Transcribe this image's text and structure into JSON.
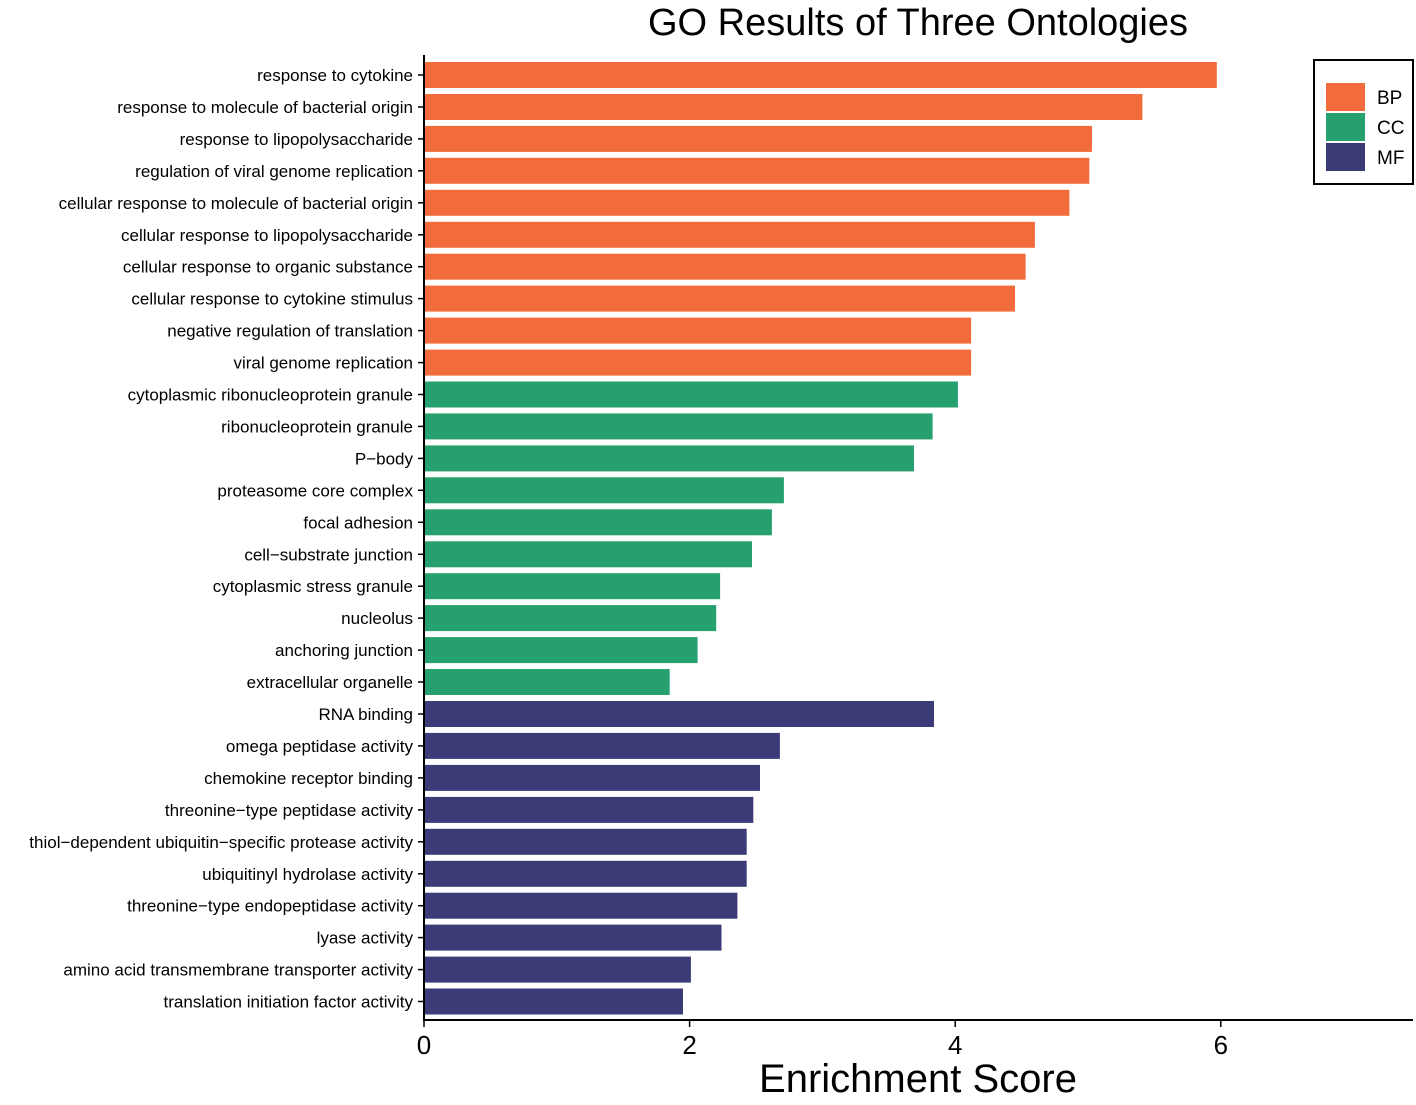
{
  "chart_data": {
    "type": "bar",
    "orientation": "horizontal",
    "title": "GO Results of Three Ontologies",
    "xlabel": "Enrichment Score",
    "ylabel": "",
    "xlim": [
      0,
      7.45
    ],
    "xticks": [
      0,
      2,
      4,
      6
    ],
    "grid": false,
    "legend_position": "top-right",
    "groups": [
      {
        "name": "BP",
        "color": "#F26B3A"
      },
      {
        "name": "CC",
        "color": "#27A06F"
      },
      {
        "name": "MF",
        "color": "#3B3B78"
      }
    ],
    "categories": [
      "response to cytokine",
      "response to molecule of bacterial origin",
      "response to lipopolysaccharide",
      "regulation of viral genome replication",
      "cellular response to molecule of bacterial origin",
      "cellular response to lipopolysaccharide",
      "cellular response to organic substance",
      "cellular response to cytokine stimulus",
      "negative regulation of translation",
      "viral genome replication",
      "cytoplasmic ribonucleoprotein granule",
      "ribonucleoprotein granule",
      "P−body",
      "proteasome core complex",
      "focal adhesion",
      "cell−substrate junction",
      "cytoplasmic stress granule",
      "nucleolus",
      "anchoring junction",
      "extracellular organelle",
      "RNA binding",
      "omega peptidase activity",
      "chemokine receptor binding",
      "threonine−type peptidase activity",
      "thiol−dependent ubiquitin−specific protease activity",
      "ubiquitinyl hydrolase activity",
      "threonine−type endopeptidase activity",
      "lyase activity",
      "amino acid transmembrane transporter activity",
      "translation initiation factor activity"
    ],
    "values": [
      5.97,
      5.41,
      5.03,
      5.01,
      4.86,
      4.6,
      4.53,
      4.45,
      4.12,
      4.12,
      4.02,
      3.83,
      3.69,
      2.71,
      2.62,
      2.47,
      2.23,
      2.2,
      2.06,
      1.85,
      3.84,
      2.68,
      2.53,
      2.48,
      2.43,
      2.43,
      2.36,
      2.24,
      2.01,
      1.95
    ],
    "group_of": [
      "BP",
      "BP",
      "BP",
      "BP",
      "BP",
      "BP",
      "BP",
      "BP",
      "BP",
      "BP",
      "CC",
      "CC",
      "CC",
      "CC",
      "CC",
      "CC",
      "CC",
      "CC",
      "CC",
      "CC",
      "MF",
      "MF",
      "MF",
      "MF",
      "MF",
      "MF",
      "MF",
      "MF",
      "MF",
      "MF"
    ]
  }
}
